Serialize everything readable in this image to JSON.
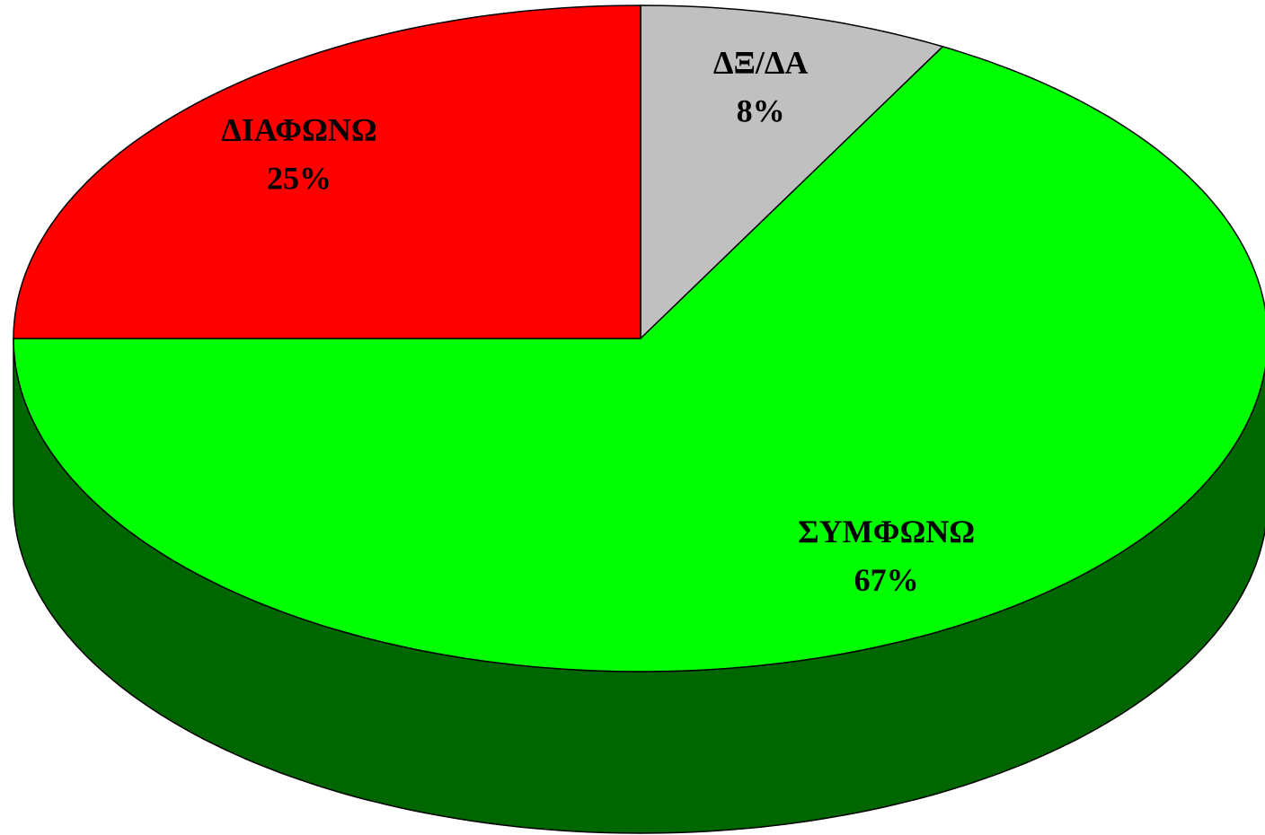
{
  "chart_data": {
    "type": "pie",
    "categories": [
      "ΔΞ/ΔΑ",
      "ΣΥΜΦΩΝΩ",
      "ΔΙΑΦΩΝΩ"
    ],
    "values": [
      8,
      67,
      25
    ],
    "value_labels": [
      "8%",
      "67%",
      "25%"
    ],
    "colors": [
      "#c0c0c0",
      "#00ff00",
      "#ff0000"
    ]
  }
}
